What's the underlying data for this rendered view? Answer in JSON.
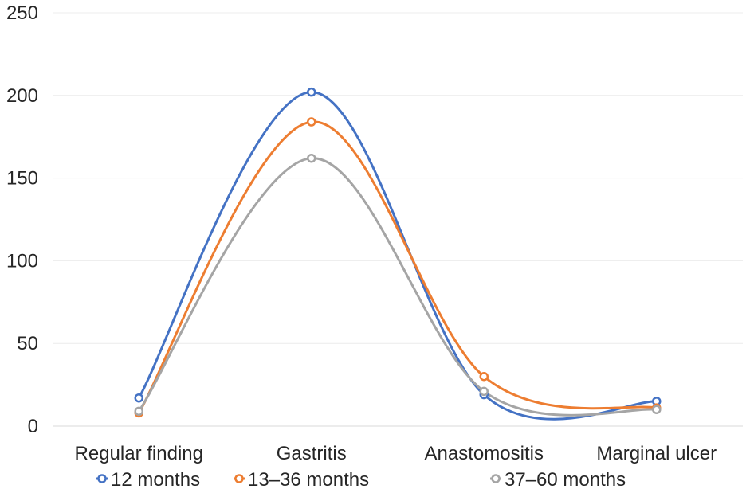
{
  "chart_data": {
    "type": "line",
    "smooth": true,
    "categories": [
      "Regular finding",
      "Gastritis",
      "Anastomositis",
      "Marginal ulcer"
    ],
    "ylim": [
      0,
      250
    ],
    "yticks": [
      "0",
      "50",
      "100",
      "150",
      "200",
      "250"
    ],
    "grid": true,
    "legend_position": "bottom",
    "title": "",
    "xlabel": "",
    "ylabel": "",
    "series": [
      {
        "name": "12 months",
        "color": "#4472c4",
        "values": [
          17,
          202,
          19,
          15
        ]
      },
      {
        "name": "13–36 months",
        "color": "#ed7d31",
        "values": [
          8,
          184,
          30,
          11
        ]
      },
      {
        "name": "37–60 months",
        "color": "#a5a5a5",
        "values": [
          9,
          162,
          21,
          10
        ]
      }
    ]
  }
}
